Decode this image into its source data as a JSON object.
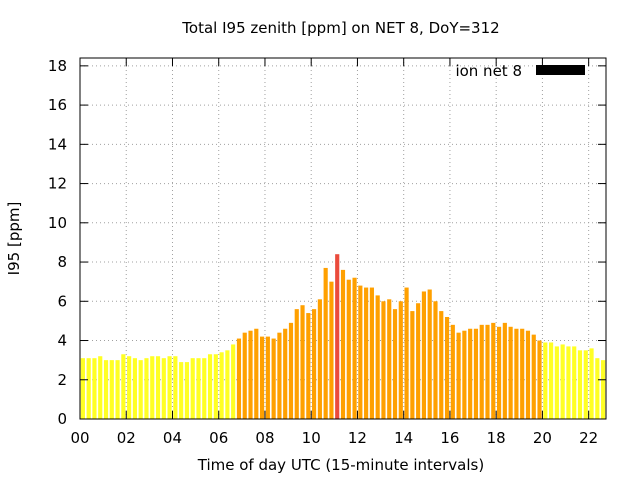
{
  "chart_data": {
    "type": "bar",
    "title": "Total I95 zenith [ppm] on NET 8, DoY=312",
    "xlabel": "Time of day UTC (15-minute intervals)",
    "ylabel": "I95 [ppm]",
    "xlim": [
      0,
      22.75
    ],
    "ylim": [
      0,
      18.4
    ],
    "x_ticks": [
      "00",
      "02",
      "04",
      "06",
      "08",
      "10",
      "12",
      "14",
      "16",
      "18",
      "20",
      "22"
    ],
    "x_tick_values": [
      0,
      2,
      4,
      6,
      8,
      10,
      12,
      14,
      16,
      18,
      20,
      22
    ],
    "y_ticks": [
      "0",
      "2",
      "4",
      "6",
      "8",
      "10",
      "12",
      "14",
      "16",
      "18"
    ],
    "y_tick_values": [
      0,
      2,
      4,
      6,
      8,
      10,
      12,
      14,
      16,
      18
    ],
    "grid": true,
    "legend_position": "top-right",
    "legend_color": "#000000",
    "bar_interval_hours": 0.25,
    "series": [
      {
        "name": "ion net 8",
        "values": [
          3.1,
          3.1,
          3.1,
          3.2,
          3.0,
          3.0,
          3.0,
          3.3,
          3.2,
          3.1,
          3.0,
          3.1,
          3.2,
          3.2,
          3.1,
          3.2,
          3.2,
          2.9,
          2.9,
          3.1,
          3.1,
          3.1,
          3.3,
          3.3,
          3.4,
          3.5,
          3.8,
          4.1,
          4.4,
          4.5,
          4.6,
          4.2,
          4.2,
          4.1,
          4.4,
          4.6,
          4.9,
          5.6,
          5.8,
          5.4,
          5.6,
          6.1,
          7.7,
          7.0,
          8.4,
          7.6,
          7.1,
          7.2,
          6.8,
          6.7,
          6.7,
          6.3,
          6.0,
          6.1,
          5.6,
          6.0,
          6.7,
          5.5,
          5.9,
          6.5,
          6.6,
          6.0,
          5.5,
          5.2,
          4.8,
          4.4,
          4.5,
          4.6,
          4.6,
          4.8,
          4.8,
          4.9,
          4.7,
          4.9,
          4.7,
          4.6,
          4.6,
          4.5,
          4.3,
          4.0,
          3.9,
          3.9,
          3.7,
          3.8,
          3.7,
          3.7,
          3.5,
          3.5,
          3.6,
          3.1,
          3.0
        ]
      }
    ],
    "colors": {
      "low": "#ffff24",
      "medium": "#ffa000",
      "high": "#ea4b3c"
    },
    "color_thresholds": {
      "medium_from": 4.0,
      "high_from": 8.0
    }
  }
}
